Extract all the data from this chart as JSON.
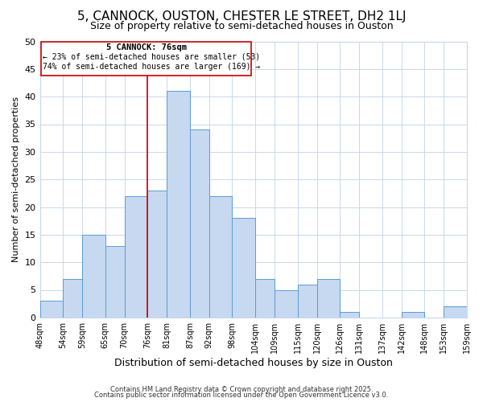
{
  "title": "5, CANNOCK, OUSTON, CHESTER LE STREET, DH2 1LJ",
  "subtitle": "Size of property relative to semi-detached houses in Ouston",
  "xlabel": "Distribution of semi-detached houses by size in Ouston",
  "ylabel": "Number of semi-detached properties",
  "bar_edges": [
    48,
    54,
    59,
    65,
    70,
    76,
    81,
    87,
    92,
    98,
    104,
    109,
    115,
    120,
    126,
    131,
    137,
    142,
    148,
    153,
    159
  ],
  "bar_heights": [
    3,
    7,
    15,
    13,
    22,
    23,
    41,
    34,
    22,
    18,
    7,
    5,
    6,
    7,
    1,
    0,
    0,
    1,
    0,
    2
  ],
  "bar_color": "#c6d9f0",
  "bar_edge_color": "#5b9bd5",
  "vline_x": 76,
  "vline_color": "#cc0000",
  "annotation_title": "5 CANNOCK: 76sqm",
  "annotation_line1": "← 23% of semi-detached houses are smaller (53)",
  "annotation_line2": "74% of semi-detached houses are larger (169) →",
  "ylim": [
    0,
    50
  ],
  "yticks": [
    0,
    5,
    10,
    15,
    20,
    25,
    30,
    35,
    40,
    45,
    50
  ],
  "tick_labels": [
    "48sqm",
    "54sqm",
    "59sqm",
    "65sqm",
    "70sqm",
    "76sqm",
    "81sqm",
    "87sqm",
    "92sqm",
    "98sqm",
    "104sqm",
    "109sqm",
    "115sqm",
    "120sqm",
    "126sqm",
    "131sqm",
    "137sqm",
    "142sqm",
    "148sqm",
    "153sqm",
    "159sqm"
  ],
  "footer1": "Contains HM Land Registry data © Crown copyright and database right 2025.",
  "footer2": "Contains public sector information licensed under the Open Government Licence v3.0.",
  "bg_color": "#ffffff",
  "grid_color": "#c8d8ec",
  "title_fontsize": 11,
  "subtitle_fontsize": 9,
  "ylabel_fontsize": 8,
  "xlabel_fontsize": 9
}
